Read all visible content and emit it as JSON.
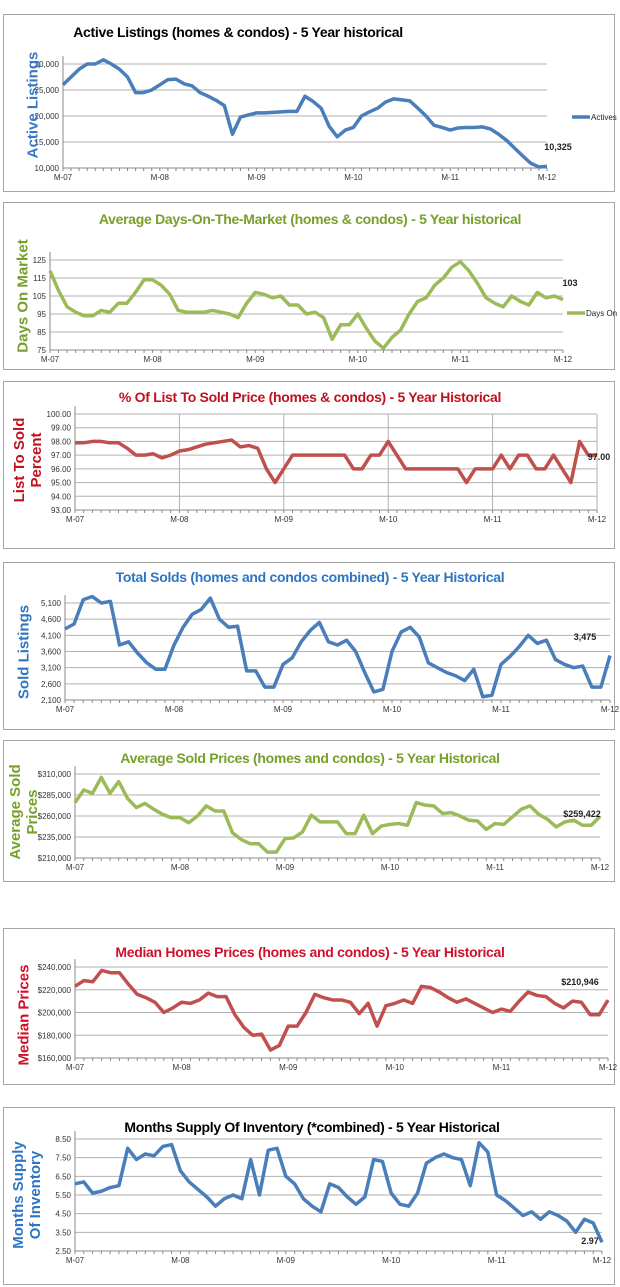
{
  "chart_data": [
    {
      "type": "line",
      "title": "Active Listings (homes & condos) - 5 Year historical",
      "ylabel": "Active Listings",
      "color": "#4a7ebb",
      "title_color": "#000000",
      "ylabel_color": "#3a78c3",
      "xticks": [
        "M-07",
        "M-08",
        "M-09",
        "M-10",
        "M-11",
        "M-12"
      ],
      "yticks": [
        "10,000",
        "15,000",
        "20,000",
        "25,000",
        "30,000"
      ],
      "ylim": [
        10000,
        30000
      ],
      "ystep": 5000,
      "legend": "Actives",
      "last_label": "10,325",
      "values": [
        26000,
        27500,
        29000,
        30000,
        30000,
        30800,
        30000,
        29000,
        27500,
        24500,
        24500,
        25000,
        26000,
        27000,
        27100,
        26200,
        25800,
        24500,
        23800,
        23000,
        22000,
        16500,
        19800,
        20200,
        20600,
        20600,
        20700,
        20800,
        20900,
        20900,
        23800,
        22800,
        21500,
        18000,
        16000,
        17300,
        17800,
        20000,
        20800,
        21500,
        22700,
        23300,
        23100,
        22900,
        21500,
        20000,
        18200,
        17800,
        17300,
        17700,
        17800,
        17800,
        17900,
        17500,
        16500,
        15300,
        13800,
        12300,
        10900,
        10200,
        10325
      ]
    },
    {
      "type": "line",
      "title": "Average Days-On-The-Market (homes & condos) - 5 Year historical",
      "ylabel": "Days On Market",
      "color": "#9bbb59",
      "title_color": "#77a02a",
      "ylabel_color": "#77a02a",
      "xticks": [
        "M-07",
        "M-08",
        "M-09",
        "M-10",
        "M-11",
        "M-12"
      ],
      "yticks": [
        "75",
        "85",
        "95",
        "105",
        "115",
        "125"
      ],
      "ylim": [
        75,
        125
      ],
      "ystep": 10,
      "legend": "Days On",
      "last_label": "103",
      "values": [
        119,
        108,
        99,
        96,
        94,
        94,
        97,
        96,
        101,
        101,
        107,
        114,
        114,
        111,
        106,
        97,
        96,
        96,
        96,
        97,
        96,
        95,
        93,
        101,
        107,
        106,
        104,
        105,
        100,
        100,
        95,
        96,
        93,
        81,
        89,
        89,
        95,
        87,
        80,
        76,
        82,
        86,
        95,
        102,
        104,
        111,
        115,
        121,
        124,
        119,
        112,
        104,
        101,
        99,
        105,
        102,
        100,
        107,
        104,
        105,
        103
      ]
    },
    {
      "type": "line",
      "title": "% Of List To Sold Price (homes & condos) - 5 Year Historical",
      "ylabel": "List To Sold Percent",
      "color": "#c0504d",
      "title_color": "#c0111f",
      "ylabel_color": "#c0111f",
      "xticks": [
        "M-07",
        "M-08",
        "M-09",
        "M-10",
        "M-11",
        "M-12"
      ],
      "yticks": [
        "93.00",
        "94.00",
        "95.00",
        "96.00",
        "97.00",
        "98.00",
        "99.00",
        "100.00"
      ],
      "ylim": [
        93,
        100
      ],
      "ystep": 1,
      "vertical_grid": true,
      "last_label": "97.00",
      "values": [
        97.9,
        97.9,
        98,
        98,
        97.9,
        97.9,
        97.5,
        97,
        97,
        97.1,
        96.8,
        97,
        97.3,
        97.4,
        97.6,
        97.8,
        97.9,
        98,
        98.1,
        97.6,
        97.7,
        97.5,
        96,
        95,
        96,
        97,
        97,
        97,
        97,
        97,
        97,
        97,
        96,
        96,
        97,
        97,
        98,
        97,
        96,
        96,
        96,
        96,
        96,
        96,
        96,
        95,
        96,
        96,
        96,
        97,
        96,
        97,
        97,
        96,
        96,
        97,
        96,
        95,
        98,
        97,
        97
      ]
    },
    {
      "type": "line",
      "title": "Total Solds (homes and condos combined) - 5 Year Historical",
      "ylabel": "Sold Listings",
      "color": "#4a7ebb",
      "title_color": "#2f75c2",
      "ylabel_color": "#2f75c2",
      "xticks": [
        "M-07",
        "M-08",
        "M-09",
        "M-10",
        "M-11",
        "M-12"
      ],
      "yticks": [
        "2,100",
        "2,600",
        "3,100",
        "3,600",
        "4,100",
        "4,600",
        "5,100"
      ],
      "ylim": [
        2100,
        5100
      ],
      "ystep": 500,
      "last_label": "3,475",
      "values": [
        4300,
        4450,
        5200,
        5300,
        5100,
        5150,
        3800,
        3900,
        3550,
        3250,
        3050,
        3050,
        3800,
        4350,
        4750,
        4900,
        5250,
        4600,
        4350,
        4380,
        3000,
        3000,
        2500,
        2500,
        3200,
        3400,
        3900,
        4250,
        4500,
        3900,
        3800,
        3950,
        3600,
        2950,
        2350,
        2430,
        3600,
        4200,
        4350,
        4050,
        3250,
        3100,
        2950,
        2850,
        2700,
        3050,
        2200,
        2250,
        3200,
        3450,
        3750,
        4100,
        3850,
        3950,
        3350,
        3200,
        3100,
        3150,
        2500,
        2500,
        3475
      ]
    },
    {
      "type": "line",
      "title": "Average Sold Prices (homes and condos) - 5 Year Historical",
      "ylabel": "Average Sold Prices",
      "color": "#9bbb59",
      "title_color": "#77a02a",
      "ylabel_color": "#77a02a",
      "xticks": [
        "M-07",
        "M-08",
        "M-09",
        "M-10",
        "M-11",
        "M-12"
      ],
      "yticks": [
        "$210,000",
        "$235,000",
        "$260,000",
        "$285,000",
        "$310,000"
      ],
      "ylim": [
        210000,
        310000
      ],
      "ystep": 25000,
      "last_label": "$259,422",
      "values": [
        276000,
        291000,
        287000,
        306000,
        287000,
        301000,
        281000,
        270000,
        275000,
        268000,
        262000,
        258000,
        258000,
        252000,
        260000,
        272000,
        266000,
        266000,
        240000,
        232000,
        227000,
        227000,
        217000,
        217000,
        233000,
        234000,
        241000,
        261000,
        253000,
        253000,
        253000,
        239000,
        239000,
        261000,
        239000,
        248000,
        250000,
        251000,
        249000,
        276000,
        273000,
        272000,
        263000,
        264000,
        260000,
        255000,
        254000,
        244000,
        251000,
        250000,
        259000,
        268000,
        272000,
        262000,
        256000,
        247000,
        253000,
        255000,
        249000,
        249000,
        259422
      ]
    },
    {
      "type": "line",
      "title": "Median Homes Prices (homes and condos) - 5 Year Historical",
      "ylabel": "Median Prices",
      "color": "#c0504d",
      "title_color": "#d0102a",
      "ylabel_color": "#d0102a",
      "xticks": [
        "M-07",
        "M-08",
        "M-09",
        "M-10",
        "M-11",
        "M-12"
      ],
      "yticks": [
        "$160,000",
        "$180,000",
        "$200,000",
        "$220,000",
        "$240,000"
      ],
      "ylim": [
        160000,
        240000
      ],
      "ystep": 20000,
      "last_label": "$210,946",
      "values": [
        223000,
        228000,
        227000,
        237000,
        235000,
        235000,
        225000,
        216000,
        213000,
        209000,
        200000,
        204000,
        209000,
        208000,
        211000,
        217000,
        214000,
        214000,
        198000,
        187000,
        180000,
        181000,
        167000,
        171000,
        188000,
        188000,
        200000,
        216000,
        213000,
        211000,
        211000,
        209000,
        199000,
        208000,
        188000,
        206000,
        208000,
        211000,
        208000,
        223000,
        222000,
        218000,
        213000,
        209000,
        212000,
        208000,
        204000,
        200000,
        203000,
        201000,
        210000,
        218000,
        215000,
        214000,
        208000,
        204000,
        210000,
        209000,
        198000,
        198000,
        210946
      ]
    },
    {
      "type": "line",
      "title": "Months Supply Of Inventory (*combined) - 5 Year Historical",
      "ylabel": "Months Supply Of Inventory",
      "color": "#4a7ebb",
      "title_color": "#000000",
      "ylabel_color": "#2f75c2",
      "xticks": [
        "M-07",
        "M-08",
        "M-09",
        "M-10",
        "M-11",
        "M-12"
      ],
      "yticks": [
        "2.50",
        "3.50",
        "4.50",
        "5.50",
        "6.50",
        "7.50",
        "8.50"
      ],
      "ylim": [
        2.5,
        8.5
      ],
      "ystep": 1,
      "last_label": "2.97",
      "values": [
        6.1,
        6.2,
        5.6,
        5.7,
        5.9,
        6.0,
        8.0,
        7.4,
        7.7,
        7.6,
        8.1,
        8.2,
        6.8,
        6.2,
        5.8,
        5.4,
        4.9,
        5.3,
        5.5,
        5.3,
        7.4,
        5.5,
        7.9,
        8.0,
        6.5,
        6.1,
        5.3,
        4.9,
        4.6,
        6.1,
        5.9,
        5.4,
        5.0,
        5.4,
        7.4,
        7.3,
        5.6,
        5.0,
        4.9,
        5.6,
        7.2,
        7.5,
        7.7,
        7.5,
        7.4,
        6.0,
        8.3,
        7.8,
        5.5,
        5.2,
        4.8,
        4.4,
        4.6,
        4.2,
        4.6,
        4.4,
        4.1,
        3.5,
        4.2,
        4.0,
        2.97
      ]
    }
  ]
}
